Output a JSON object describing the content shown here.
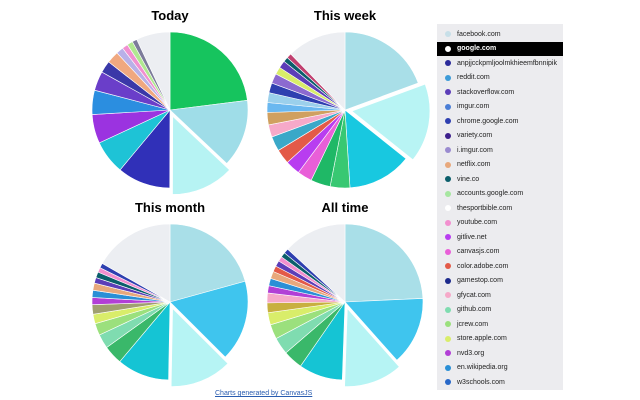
{
  "footer": {
    "link_text": "Charts generated by CanvasJS"
  },
  "legend": {
    "selected_index": 1,
    "items": [
      {
        "label": "facebook.com",
        "color": "#c7dfe8"
      },
      {
        "label": "google.com",
        "color": "#ffffff"
      },
      {
        "label": "anpjjcckpmljoolmkhieemfbnnipik",
        "color": "#2a2a9a"
      },
      {
        "label": "reddit.com",
        "color": "#3d9bd8"
      },
      {
        "label": "stackoverflow.com",
        "color": "#5c3db8"
      },
      {
        "label": "imgur.com",
        "color": "#4a7ed6"
      },
      {
        "label": "chrome.google.com",
        "color": "#2e3fb0"
      },
      {
        "label": "variety.com",
        "color": "#3c1f8c"
      },
      {
        "label": "i.imgur.com",
        "color": "#9a8bd0"
      },
      {
        "label": "netflix.com",
        "color": "#e8a87c"
      },
      {
        "label": "vine.co",
        "color": "#0b5e6b"
      },
      {
        "label": "accounts.google.com",
        "color": "#a6e6a0"
      },
      {
        "label": "thesportbible.com",
        "color": "#ffffff"
      },
      {
        "label": "youtube.com",
        "color": "#f28fcf"
      },
      {
        "label": "gitlive.net",
        "color": "#b83df0"
      },
      {
        "label": "canvasjs.com",
        "color": "#e95fd8"
      },
      {
        "label": "color.adobe.com",
        "color": "#e35a48"
      },
      {
        "label": "gamestop.com",
        "color": "#1d2a8c"
      },
      {
        "label": "gfycat.com",
        "color": "#f6a9c9"
      },
      {
        "label": "github.com",
        "color": "#7fdcb0"
      },
      {
        "label": "jcrew.com",
        "color": "#9be07d"
      },
      {
        "label": "store.apple.com",
        "color": "#d9ed6a"
      },
      {
        "label": "nvd3.org",
        "color": "#b23fd6"
      },
      {
        "label": "en.wikipedia.org",
        "color": "#2a8fd6"
      },
      {
        "label": "w3schools.com",
        "color": "#2868c8"
      }
    ]
  },
  "chart_data": [
    {
      "type": "pie",
      "title": "Today",
      "slices": [
        {
          "value": 23,
          "color": "#16c45e"
        },
        {
          "value": 14,
          "color": "#9fdde8"
        },
        {
          "value": 13,
          "color": "#b6f3f3",
          "exploded": true
        },
        {
          "value": 11,
          "color": "#3030b8"
        },
        {
          "value": 7,
          "color": "#1ec3d6"
        },
        {
          "value": 6,
          "color": "#9b33e0"
        },
        {
          "value": 5,
          "color": "#2b8ee0"
        },
        {
          "value": 4,
          "color": "#6a3ec9"
        },
        {
          "value": 2.5,
          "color": "#3a38a8"
        },
        {
          "value": 2.5,
          "color": "#f0a880"
        },
        {
          "value": 1.5,
          "color": "#b8b0e8"
        },
        {
          "value": 1.2,
          "color": "#f090d0"
        },
        {
          "value": 1.2,
          "color": "#b0e890"
        },
        {
          "value": 1,
          "color": "#7c7c9a"
        },
        {
          "value": 7,
          "color": "#eceef2"
        }
      ]
    },
    {
      "type": "pie",
      "title": "This week",
      "slices": [
        {
          "value": 19,
          "color": "#a9dfe8"
        },
        {
          "value": 16,
          "color": "#b8f4f4",
          "exploded": true
        },
        {
          "value": 13,
          "color": "#18c8e0"
        },
        {
          "value": 4,
          "color": "#38c872"
        },
        {
          "value": 4,
          "color": "#1fb866"
        },
        {
          "value": 3,
          "color": "#e95fd8"
        },
        {
          "value": 3,
          "color": "#b83df0"
        },
        {
          "value": 3,
          "color": "#e35a48"
        },
        {
          "value": 3,
          "color": "#3aa8c8"
        },
        {
          "value": 2.5,
          "color": "#f6a9c9"
        },
        {
          "value": 2.5,
          "color": "#d0a060"
        },
        {
          "value": 2,
          "color": "#6ab8f0"
        },
        {
          "value": 2,
          "color": "#9bd0ec"
        },
        {
          "value": 2,
          "color": "#2e3fb0"
        },
        {
          "value": 2,
          "color": "#8c6ad0"
        },
        {
          "value": 1.5,
          "color": "#d9ed6a"
        },
        {
          "value": 1.5,
          "color": "#5c3db8"
        },
        {
          "value": 1,
          "color": "#0b5e6b"
        },
        {
          "value": 1,
          "color": "#c04070"
        },
        {
          "value": 12,
          "color": "#eceef2"
        }
      ]
    },
    {
      "type": "pie",
      "title": "This month",
      "slices": [
        {
          "value": 21,
          "color": "#a9dfe8"
        },
        {
          "value": 17,
          "color": "#3fc5ee"
        },
        {
          "value": 13,
          "color": "#b6f4f4",
          "exploded": true
        },
        {
          "value": 11,
          "color": "#15c4d4"
        },
        {
          "value": 4,
          "color": "#3ab86a"
        },
        {
          "value": 3,
          "color": "#7fdcb0"
        },
        {
          "value": 2.5,
          "color": "#9be07d"
        },
        {
          "value": 2,
          "color": "#d9ed6a"
        },
        {
          "value": 2,
          "color": "#a0a070"
        },
        {
          "value": 1.5,
          "color": "#b23fd6"
        },
        {
          "value": 1.5,
          "color": "#2a8fd6"
        },
        {
          "value": 1.5,
          "color": "#e8a87c"
        },
        {
          "value": 1.2,
          "color": "#5c3db8"
        },
        {
          "value": 1.2,
          "color": "#0b5e6b"
        },
        {
          "value": 1,
          "color": "#f28fcf"
        },
        {
          "value": 1,
          "color": "#2e3fb0"
        },
        {
          "value": 17,
          "color": "#eceef2"
        }
      ]
    },
    {
      "type": "pie",
      "title": "All time",
      "slices": [
        {
          "value": 24,
          "color": "#a9dfe8"
        },
        {
          "value": 14,
          "color": "#3fc5ee"
        },
        {
          "value": 12,
          "color": "#b6f4f4",
          "exploded": true
        },
        {
          "value": 9,
          "color": "#15c4d4"
        },
        {
          "value": 4,
          "color": "#3ab86a"
        },
        {
          "value": 3.5,
          "color": "#7fdcb0"
        },
        {
          "value": 3,
          "color": "#9be07d"
        },
        {
          "value": 2.5,
          "color": "#d9ed6a"
        },
        {
          "value": 2,
          "color": "#c8b040"
        },
        {
          "value": 2,
          "color": "#f6a9c9"
        },
        {
          "value": 1.5,
          "color": "#b23fd6"
        },
        {
          "value": 1.5,
          "color": "#2a8fd6"
        },
        {
          "value": 1.5,
          "color": "#e8a87c"
        },
        {
          "value": 1.2,
          "color": "#e35a48"
        },
        {
          "value": 1.2,
          "color": "#5c3db8"
        },
        {
          "value": 1,
          "color": "#f28fcf"
        },
        {
          "value": 1,
          "color": "#0b5e6b"
        },
        {
          "value": 1,
          "color": "#2e3fb0"
        },
        {
          "value": 13,
          "color": "#eceef2"
        }
      ]
    }
  ]
}
